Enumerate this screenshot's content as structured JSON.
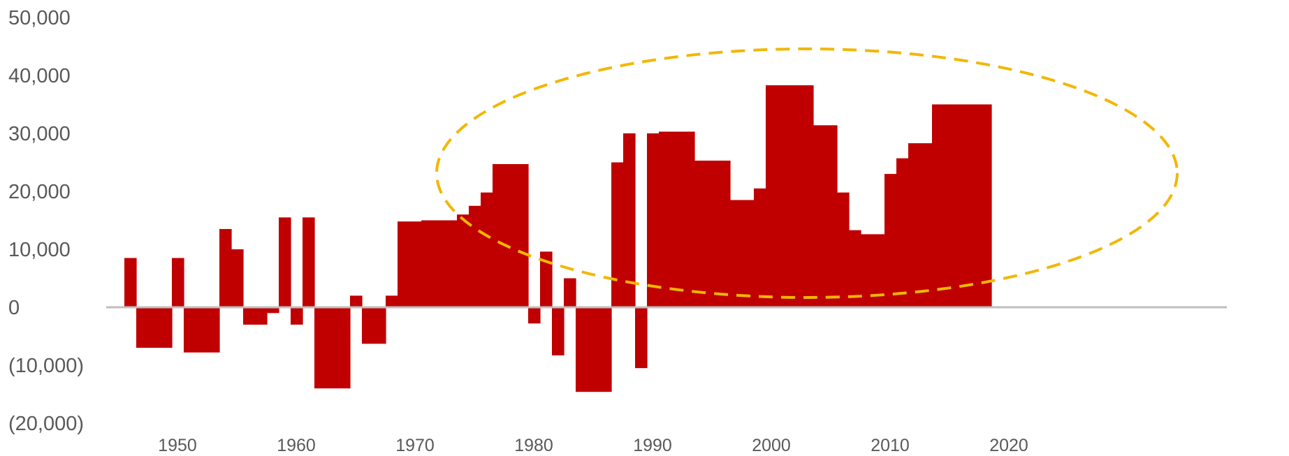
{
  "chart_data": {
    "type": "area",
    "title": "",
    "xlabel": "",
    "ylabel": "",
    "xlim": [
      1946,
      2026
    ],
    "ylim": [
      -20000,
      50000
    ],
    "y_ticks": [
      {
        "value": 50000,
        "label": "50,000"
      },
      {
        "value": 40000,
        "label": "40,000"
      },
      {
        "value": 30000,
        "label": "30,000"
      },
      {
        "value": 20000,
        "label": "20,000"
      },
      {
        "value": 10000,
        "label": "10,000"
      },
      {
        "value": 0,
        "label": "0"
      },
      {
        "value": -10000,
        "label": "(10,000)"
      },
      {
        "value": -20000,
        "label": "(20,000)"
      }
    ],
    "x_ticks": [
      {
        "value": 1950,
        "label": "1950"
      },
      {
        "value": 1960,
        "label": "1960"
      },
      {
        "value": 1970,
        "label": "1970"
      },
      {
        "value": 1980,
        "label": "1980"
      },
      {
        "value": 1990,
        "label": "1990"
      },
      {
        "value": 2000,
        "label": "2000"
      },
      {
        "value": 2010,
        "label": "2010"
      },
      {
        "value": 2020,
        "label": "2020"
      }
    ],
    "grid": false,
    "legend": false,
    "series": [
      {
        "color": "#c00000",
        "points": [
          {
            "from": 1948.0,
            "to": 1949.0,
            "value": 8500
          },
          {
            "from": 1949.0,
            "to": 1952.0,
            "value": -7000
          },
          {
            "from": 1952.0,
            "to": 1953.0,
            "value": 8500
          },
          {
            "from": 1953.0,
            "to": 1956.0,
            "value": -7800
          },
          {
            "from": 1956.0,
            "to": 1957.0,
            "value": 13500
          },
          {
            "from": 1957.0,
            "to": 1958.0,
            "value": 10000
          },
          {
            "from": 1958.0,
            "to": 1960.0,
            "value": -3000
          },
          {
            "from": 1960.0,
            "to": 1961.0,
            "value": -1000
          },
          {
            "from": 1961.0,
            "to": 1962.0,
            "value": 15500
          },
          {
            "from": 1962.0,
            "to": 1963.0,
            "value": -3000
          },
          {
            "from": 1963.0,
            "to": 1964.0,
            "value": 15500
          },
          {
            "from": 1964.0,
            "to": 1967.0,
            "value": -14000
          },
          {
            "from": 1967.0,
            "to": 1968.0,
            "value": 2000
          },
          {
            "from": 1968.0,
            "to": 1970.0,
            "value": -6300
          },
          {
            "from": 1970.0,
            "to": 1971.0,
            "value": 2000
          },
          {
            "from": 1971.0,
            "to": 1973.0,
            "value": 14800
          },
          {
            "from": 1973.0,
            "to": 1976.0,
            "value": 15000
          },
          {
            "from": 1976.0,
            "to": 1977.0,
            "value": 16000
          },
          {
            "from": 1977.0,
            "to": 1978.0,
            "value": 17500
          },
          {
            "from": 1978.0,
            "to": 1979.0,
            "value": 19800
          },
          {
            "from": 1979.0,
            "to": 1982.0,
            "value": 24700
          },
          {
            "from": 1982.0,
            "to": 1983.0,
            "value": -2800
          },
          {
            "from": 1983.0,
            "to": 1984.0,
            "value": 9600
          },
          {
            "from": 1984.0,
            "to": 1985.0,
            "value": -8300
          },
          {
            "from": 1985.0,
            "to": 1986.0,
            "value": 5000
          },
          {
            "from": 1986.0,
            "to": 1989.0,
            "value": -14600
          },
          {
            "from": 1989.0,
            "to": 1990.0,
            "value": 25000
          },
          {
            "from": 1990.0,
            "to": 1991.0,
            "value": 30000
          },
          {
            "from": 1991.0,
            "to": 1992.0,
            "value": -10500
          },
          {
            "from": 1992.0,
            "to": 1993.0,
            "value": 30000
          },
          {
            "from": 1993.0,
            "to": 1996.0,
            "value": 30300
          },
          {
            "from": 1996.0,
            "to": 1999.0,
            "value": 25300
          },
          {
            "from": 1999.0,
            "to": 2001.0,
            "value": 18500
          },
          {
            "from": 2001.0,
            "to": 2002.0,
            "value": 20500
          },
          {
            "from": 2002.0,
            "to": 2006.0,
            "value": 38300
          },
          {
            "from": 2006.0,
            "to": 2008.0,
            "value": 31400
          },
          {
            "from": 2008.0,
            "to": 2009.0,
            "value": 19800
          },
          {
            "from": 2009.0,
            "to": 2010.0,
            "value": 13300
          },
          {
            "from": 2010.0,
            "to": 2012.0,
            "value": 12600
          },
          {
            "from": 2012.0,
            "to": 2013.0,
            "value": 23000
          },
          {
            "from": 2013.0,
            "to": 2014.0,
            "value": 25700
          },
          {
            "from": 2014.0,
            "to": 2016.0,
            "value": 28300
          },
          {
            "from": 2016.0,
            "to": 2018.0,
            "value": 35000
          },
          {
            "from": 2018.0,
            "to": 2021.0,
            "value": 35000
          }
        ]
      }
    ]
  }
}
